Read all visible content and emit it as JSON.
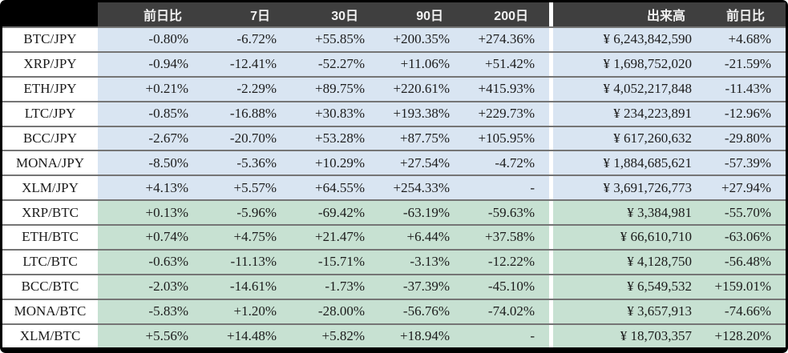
{
  "table": {
    "headers": {
      "pair": "",
      "change_1d": "前日比",
      "d7": "7日",
      "d30": "30日",
      "d90": "90日",
      "d200": "200日",
      "volume": "出来高",
      "volume_change_1d": "前日比"
    },
    "rows": [
      {
        "pair": "BTC/JPY",
        "group": "jpy",
        "cells": [
          "-0.80%",
          "-6.72%",
          "+55.85%",
          "+200.35%",
          "+274.36%",
          "¥ 6,243,842,590",
          "+4.68%"
        ]
      },
      {
        "pair": "XRP/JPY",
        "group": "jpy",
        "cells": [
          "-0.94%",
          "-12.41%",
          "-52.27%",
          "+11.06%",
          "+51.42%",
          "¥ 1,698,752,020",
          "-21.59%"
        ]
      },
      {
        "pair": "ETH/JPY",
        "group": "jpy",
        "cells": [
          "+0.21%",
          "-2.29%",
          "+89.75%",
          "+220.61%",
          "+415.93%",
          "¥ 4,052,217,848",
          "-11.43%"
        ]
      },
      {
        "pair": "LTC/JPY",
        "group": "jpy",
        "cells": [
          "-0.85%",
          "-16.88%",
          "+30.83%",
          "+193.38%",
          "+229.73%",
          "¥ 234,223,891",
          "-12.96%"
        ]
      },
      {
        "pair": "BCC/JPY",
        "group": "jpy",
        "cells": [
          "-2.67%",
          "-20.70%",
          "+53.28%",
          "+87.75%",
          "+105.95%",
          "¥ 617,260,632",
          "-29.80%"
        ]
      },
      {
        "pair": "MONA/JPY",
        "group": "jpy",
        "cells": [
          "-8.50%",
          "-5.36%",
          "+10.29%",
          "+27.54%",
          "-4.72%",
          "¥ 1,884,685,621",
          "-57.39%"
        ]
      },
      {
        "pair": "XLM/JPY",
        "group": "jpy",
        "cells": [
          "+4.13%",
          "+5.57%",
          "+64.55%",
          "+254.33%",
          "-",
          "¥ 3,691,726,773",
          "+27.94%"
        ]
      },
      {
        "pair": "XRP/BTC",
        "group": "btc",
        "cells": [
          "+0.13%",
          "-5.96%",
          "-69.42%",
          "-63.19%",
          "-59.63%",
          "¥ 3,384,981",
          "-55.70%"
        ]
      },
      {
        "pair": "ETH/BTC",
        "group": "btc",
        "cells": [
          "+0.74%",
          "+4.75%",
          "+21.47%",
          "+6.44%",
          "+37.58%",
          "¥ 66,610,710",
          "-63.06%"
        ]
      },
      {
        "pair": "LTC/BTC",
        "group": "btc",
        "cells": [
          "-0.63%",
          "-11.13%",
          "-15.71%",
          "-3.13%",
          "-12.22%",
          "¥ 4,128,750",
          "-56.48%"
        ]
      },
      {
        "pair": "BCC/BTC",
        "group": "btc",
        "cells": [
          "-2.03%",
          "-14.61%",
          "-1.73%",
          "-37.39%",
          "-45.10%",
          "¥ 6,549,532",
          "+159.01%"
        ]
      },
      {
        "pair": "MONA/BTC",
        "group": "btc",
        "cells": [
          "-5.83%",
          "+1.20%",
          "-28.00%",
          "-56.76%",
          "-74.02%",
          "¥ 3,657,913",
          "-74.66%"
        ]
      },
      {
        "pair": "XLM/BTC",
        "group": "btc",
        "cells": [
          "+5.56%",
          "+14.48%",
          "+5.82%",
          "+18.94%",
          "-",
          "¥ 18,703,357",
          "+128.20%"
        ]
      }
    ]
  },
  "colors": {
    "frame": "#000000",
    "header_bg": "#3f3f3f",
    "header_text": "#f2f2f2",
    "jpy_row_bg": "#d9e5f2",
    "btc_row_bg": "#c7e1d2",
    "label_bg": "#ffffff",
    "divider": "#ffffff",
    "separator": "#757575",
    "text": "#1b1b1b"
  }
}
